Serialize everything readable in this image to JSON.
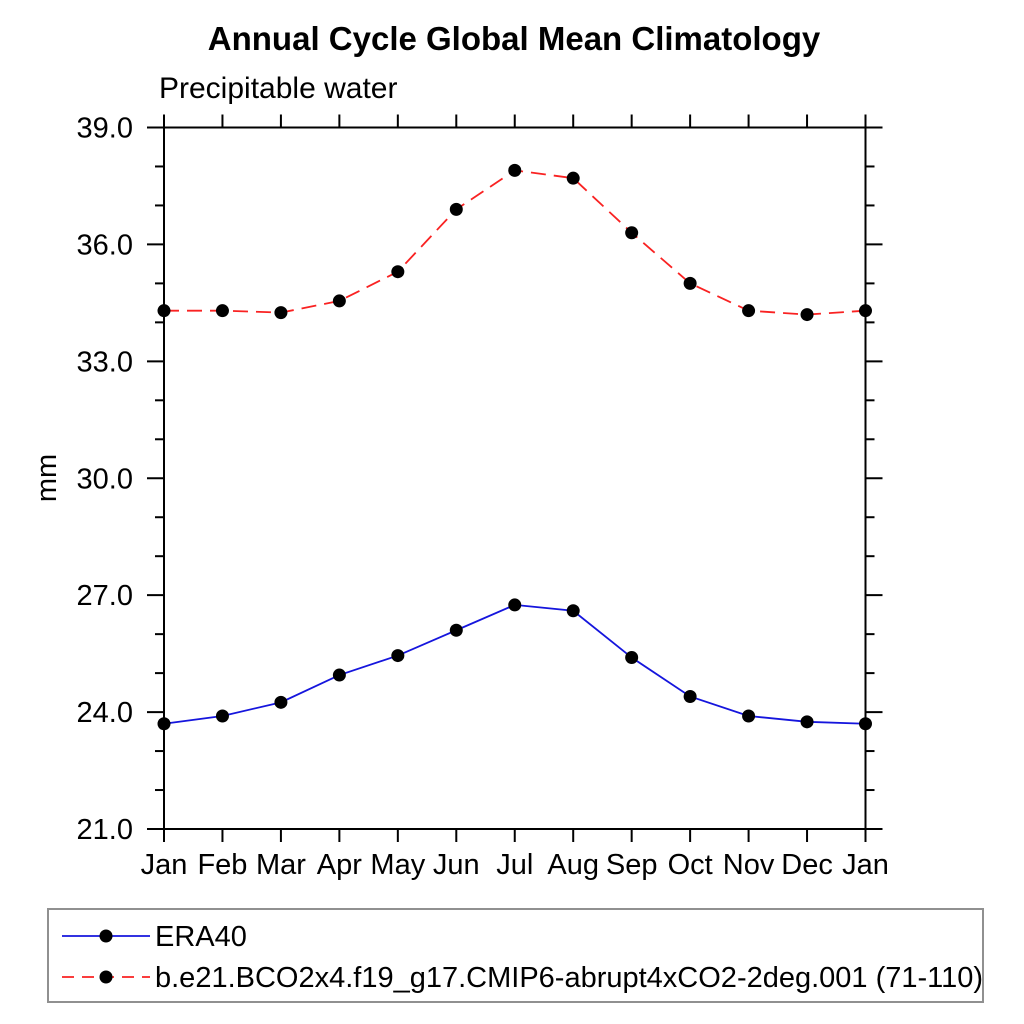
{
  "chart_data": {
    "type": "line",
    "title": "Annual Cycle Global Mean Climatology",
    "subtitle": "Precipitable water",
    "ylabel": "mm",
    "x_categories": [
      "Jan",
      "Feb",
      "Mar",
      "Apr",
      "May",
      "Jun",
      "Jul",
      "Aug",
      "Sep",
      "Oct",
      "Nov",
      "Dec",
      "Jan"
    ],
    "ylim": [
      21.0,
      39.0
    ],
    "ytick_major_step": 3.0,
    "ytick_minor_step": 1.0,
    "ytick_label_format": "one-decimal",
    "grid": false,
    "frame": "box-with-outward-ticks",
    "legend_position": "bottom-left-box",
    "colors": {
      "axis": "#000000",
      "marker": "#000000",
      "legend_border": "#909090",
      "background": "#ffffff"
    },
    "series": [
      {
        "name": "ERA40",
        "color": "#1515dd",
        "line_style": "solid",
        "marker": "filled-circle",
        "values": [
          23.7,
          23.9,
          24.25,
          24.95,
          25.45,
          26.1,
          26.75,
          26.6,
          25.4,
          24.4,
          23.9,
          23.75,
          23.7
        ]
      },
      {
        "name": "b.e21.BCO2x4.f19_g17.CMIP6-abrupt4xCO2-2deg.001 (71-110)",
        "color": "#f92222",
        "line_style": "dashed",
        "marker": "filled-circle",
        "values": [
          34.3,
          34.3,
          34.25,
          34.55,
          35.3,
          36.9,
          37.9,
          37.7,
          36.3,
          35.0,
          34.3,
          34.2,
          34.3
        ]
      }
    ]
  }
}
